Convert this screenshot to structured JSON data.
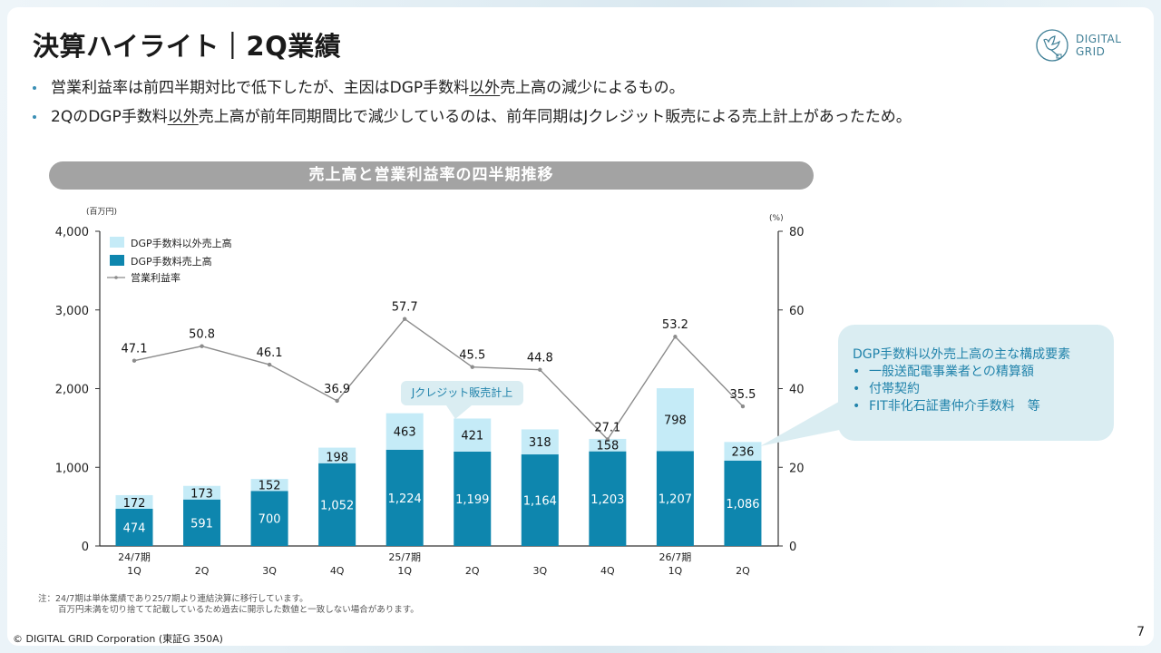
{
  "header": {
    "title": "決算ハイライト｜2Q業績",
    "logo_line1": "DIGITAL",
    "logo_line2": "GRID"
  },
  "bullets": [
    {
      "pre": "営業利益率は前四半期対比で低下したが、主因はDGP手数料",
      "underlined": "以外",
      "post": "売上高の減少によるもの。"
    },
    {
      "pre": "2QのDGP手数料",
      "underlined": "以外",
      "post": "売上高が前年同期間比で減少しているのは、前年同期はJクレジット販売による売上計上があったため。"
    }
  ],
  "chart_banner": "売上高と営業利益率の四半期推移",
  "chart_data": {
    "type": "bar",
    "stacked": true,
    "title": "売上高と営業利益率の四半期推移",
    "categories": [
      "24/7期 1Q",
      "2Q",
      "3Q",
      "4Q",
      "25/7期 1Q",
      "2Q",
      "3Q",
      "4Q",
      "26/7期 1Q",
      "2Q"
    ],
    "category_lines": [
      [
        "24/7期",
        "1Q"
      ],
      [
        "",
        "2Q"
      ],
      [
        "",
        "3Q"
      ],
      [
        "",
        "4Q"
      ],
      [
        "25/7期",
        "1Q"
      ],
      [
        "",
        "2Q"
      ],
      [
        "",
        "3Q"
      ],
      [
        "",
        "4Q"
      ],
      [
        "26/7期",
        "1Q"
      ],
      [
        "",
        "2Q"
      ]
    ],
    "series": [
      {
        "name": "DGP手数料売上高",
        "type": "bar",
        "axis": "left",
        "color": "#0e86ae",
        "values": [
          474,
          591,
          700,
          1052,
          1224,
          1199,
          1164,
          1203,
          1207,
          1086
        ],
        "labels": [
          "474",
          "591",
          "700",
          "1,052",
          "1,224",
          "1,199",
          "1,164",
          "1,203",
          "1,207",
          "1,086"
        ]
      },
      {
        "name": "DGP手数料以外売上高",
        "type": "bar",
        "axis": "left",
        "color": "#c5ebf7",
        "values": [
          172,
          173,
          152,
          198,
          463,
          421,
          318,
          158,
          798,
          236
        ],
        "labels": [
          "172",
          "173",
          "152",
          "198",
          "463",
          "421",
          "318",
          "158",
          "798",
          "236"
        ]
      },
      {
        "name": "営業利益率",
        "type": "line",
        "axis": "right",
        "color": "#8c8c8c",
        "values": [
          47.1,
          50.8,
          46.1,
          36.9,
          57.7,
          45.5,
          44.8,
          27.1,
          53.2,
          35.5
        ],
        "labels": [
          "47.1",
          "50.8",
          "46.1",
          "36.9",
          "57.7",
          "45.5",
          "44.8",
          "27.1",
          "53.2",
          "35.5"
        ]
      }
    ],
    "left_axis": {
      "unit_label": "(百万円)",
      "range": [
        0,
        4000
      ],
      "ticks": [
        "0",
        "1,000",
        "2,000",
        "3,000",
        "4,000"
      ],
      "tick_values": [
        0,
        1000,
        2000,
        3000,
        4000
      ]
    },
    "right_axis": {
      "unit_label": "(%)",
      "range": [
        0,
        80
      ],
      "ticks": [
        "0",
        "20",
        "40",
        "60",
        "80"
      ],
      "tick_values": [
        0,
        20,
        40,
        60,
        80
      ]
    },
    "legend": {
      "position": "top-left",
      "items": [
        {
          "label": "DGP手数料以外売上高",
          "kind": "box",
          "color": "#c5ebf7"
        },
        {
          "label": "DGP手数料売上高",
          "kind": "box",
          "color": "#0e86ae"
        },
        {
          "label": "営業利益率",
          "kind": "line",
          "color": "#8c8c8c"
        }
      ]
    },
    "grid": false,
    "annotations": [
      {
        "text": "Jクレジット販売計上",
        "target_category_index": 5
      }
    ]
  },
  "side_callout": {
    "heading": "DGP手数料以外売上高の主な構成要素",
    "items": [
      "一般送配電事業者との精算額",
      "付帯契約",
      "FIT非化石証書仲介手数料　等"
    ]
  },
  "note": {
    "line1": "注：24/7期は単体業績であり25/7期より連結決算に移行しています。",
    "line2": "百万円未満を切り捨てて記載しているため過去に開示した数値と一致しない場合があります。"
  },
  "footer": {
    "copyright": "© DIGITAL GRID Corporation (東証G 350A)",
    "page_number": "7"
  },
  "colors": {
    "accent": "#0e86ae",
    "accent_light": "#c5ebf7",
    "callout_bg": "#daedf2",
    "callout_text": "#2183ab"
  }
}
